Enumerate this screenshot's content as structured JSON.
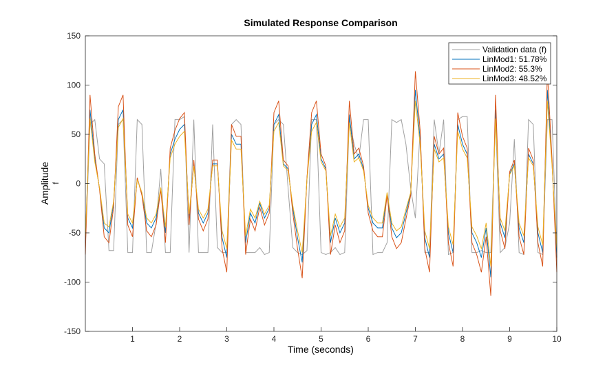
{
  "chart_data": {
    "type": "line",
    "title": "Simulated Response Comparison",
    "xlabel": "Time (seconds)",
    "ylabel": "Amplitude",
    "ylabel_sub": "f",
    "xlim": [
      0,
      10
    ],
    "ylim": [
      -150,
      150
    ],
    "xticks": [
      1,
      2,
      3,
      4,
      5,
      6,
      7,
      8,
      9,
      10
    ],
    "yticks": [
      -150,
      -100,
      -50,
      0,
      50,
      100,
      150
    ],
    "grid": false,
    "legend_position": "top-right",
    "x_step": 0.1,
    "series": [
      {
        "name": "Validation data (f)",
        "color": "#a0a0a0",
        "values": [
          -65,
          60,
          65,
          25,
          20,
          -68,
          -68,
          60,
          65,
          -70,
          -70,
          65,
          60,
          -70,
          -70,
          -40,
          15,
          -70,
          -70,
          65,
          65,
          68,
          -70,
          65,
          -70,
          -70,
          -70,
          60,
          -65,
          -70,
          -70,
          60,
          65,
          60,
          -70,
          -70,
          -70,
          -65,
          -72,
          -70,
          60,
          65,
          60,
          -5,
          -65,
          -70,
          -72,
          -68,
          65,
          65,
          -70,
          -72,
          -70,
          -65,
          -72,
          -70,
          65,
          40,
          25,
          65,
          65,
          -72,
          -70,
          -70,
          -60,
          65,
          62,
          65,
          40,
          -5,
          -35,
          55,
          -70,
          -70,
          65,
          30,
          65,
          -72,
          -70,
          65,
          68,
          68,
          -70,
          -70,
          -68,
          -70,
          -70,
          65,
          -70,
          -65,
          -40,
          45,
          -70,
          -72,
          65,
          60,
          -70,
          -72,
          65,
          65,
          -70
        ]
      },
      {
        "name": "LinMod1: 51.78%",
        "color": "#0072bd",
        "values": [
          -60,
          75,
          25,
          -5,
          -45,
          -50,
          -20,
          65,
          75,
          -35,
          -45,
          5,
          -10,
          -40,
          -45,
          -35,
          -5,
          -50,
          30,
          45,
          55,
          60,
          -35,
          20,
          -30,
          -40,
          -30,
          20,
          20,
          -55,
          -75,
          50,
          40,
          40,
          -60,
          -30,
          -40,
          -20,
          -35,
          -25,
          60,
          70,
          20,
          15,
          -25,
          -55,
          -80,
          5,
          60,
          70,
          25,
          15,
          -60,
          -35,
          -50,
          -40,
          70,
          25,
          30,
          15,
          -25,
          -40,
          -45,
          -45,
          -10,
          -45,
          -55,
          -50,
          -30,
          -10,
          95,
          45,
          -55,
          -75,
          40,
          25,
          30,
          -50,
          -70,
          60,
          40,
          30,
          -50,
          -60,
          -75,
          -45,
          -95,
          75,
          -40,
          -55,
          10,
          20,
          -45,
          -60,
          30,
          20,
          -50,
          -70,
          95,
          20,
          -75
        ]
      },
      {
        "name": "LinMod2: 55.3%",
        "color": "#d95319",
        "values": [
          -72,
          90,
          30,
          -6,
          -54,
          -60,
          -24,
          78,
          90,
          -42,
          -54,
          6,
          -12,
          -48,
          -54,
          -42,
          -6,
          -60,
          36,
          54,
          66,
          72,
          -42,
          24,
          -36,
          -48,
          -36,
          24,
          24,
          -66,
          -90,
          60,
          48,
          48,
          -72,
          -36,
          -48,
          -24,
          -42,
          -30,
          72,
          84,
          24,
          18,
          -30,
          -66,
          -96,
          6,
          72,
          84,
          30,
          18,
          -72,
          -42,
          -60,
          -48,
          84,
          30,
          36,
          18,
          -30,
          -48,
          -54,
          -54,
          -12,
          -54,
          -66,
          -60,
          -36,
          -12,
          114,
          54,
          -66,
          -90,
          48,
          30,
          36,
          -60,
          -84,
          72,
          48,
          36,
          -60,
          -72,
          -90,
          -54,
          -114,
          90,
          -48,
          -66,
          12,
          24,
          -54,
          -72,
          36,
          24,
          -60,
          -84,
          114,
          24,
          -90
        ]
      },
      {
        "name": "LinMod3: 48.52%",
        "color": "#edb120",
        "values": [
          -53,
          66,
          22,
          -4,
          -40,
          -44,
          -18,
          57,
          66,
          -31,
          -40,
          4,
          -9,
          -35,
          -40,
          -31,
          -4,
          -44,
          26,
          40,
          48,
          53,
          -31,
          18,
          -26,
          -35,
          -26,
          18,
          18,
          -48,
          -66,
          44,
          35,
          35,
          -53,
          -26,
          -35,
          -18,
          -31,
          -22,
          53,
          62,
          18,
          13,
          -22,
          -48,
          -70,
          4,
          53,
          62,
          22,
          13,
          -53,
          -31,
          -44,
          -35,
          62,
          22,
          26,
          13,
          -22,
          -35,
          -40,
          -40,
          -9,
          -40,
          -48,
          -44,
          -26,
          -9,
          84,
          40,
          -48,
          -66,
          35,
          22,
          26,
          -44,
          -62,
          53,
          35,
          26,
          -44,
          -53,
          -66,
          -40,
          -84,
          66,
          -35,
          -48,
          9,
          18,
          -40,
          -53,
          26,
          18,
          -44,
          -62,
          84,
          18,
          -66
        ]
      }
    ]
  }
}
